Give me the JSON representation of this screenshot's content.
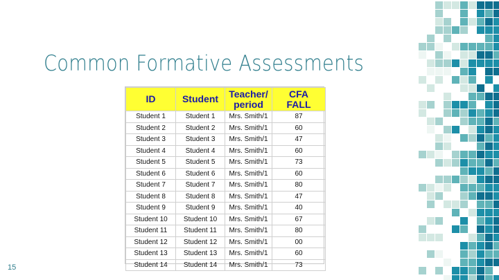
{
  "slide": {
    "title": "Common Formative Assessments",
    "number": "15"
  },
  "table": {
    "headers": [
      "ID",
      "Student",
      "Teacher/\nperiod",
      "CFA\nFALL"
    ],
    "rows": [
      [
        "Student 1",
        "Student 1",
        "Mrs. Smith/1",
        "87"
      ],
      [
        "Student 2",
        "Student 2",
        "Mrs. Smith/1",
        "60"
      ],
      [
        "Student 3",
        "Student 3",
        "Mrs. Smith/1",
        "47"
      ],
      [
        "Student 4",
        "Student 4",
        "Mrs. Smith/1",
        "60"
      ],
      [
        "Student 5",
        "Student 5",
        "Mrs. Smith/1",
        "73"
      ],
      [
        "Student 6",
        "Student 6",
        "Mrs. Smith/1",
        "60"
      ],
      [
        "Student 7",
        "Student 7",
        "Mrs. Smith/1",
        "80"
      ],
      [
        "Student 8",
        "Student 8",
        "Mrs. Smith/1",
        "47"
      ],
      [
        "Student 9",
        "Student 9",
        "Mrs. Smith/1",
        "40"
      ],
      [
        "Student 10",
        "Student 10",
        "Mrs. Smith/1",
        "67"
      ],
      [
        "Student 11",
        "Student 11",
        "Mrs. Smith/1",
        "80"
      ],
      [
        "Student 12",
        "Student 12",
        "Mrs. Smith/1",
        "00"
      ],
      [
        "Student 13",
        "Student 13",
        "Mrs. Smith/1",
        "60"
      ],
      [
        "Student 14",
        "Student 14",
        "Mrs. Smith/1",
        "73"
      ]
    ]
  },
  "colors": {
    "accent": "#2e7d8c",
    "header_bg": "#ffff33",
    "header_text": "#1a1aa6",
    "mosaic": [
      "#0f6f8f",
      "#1d8fa8",
      "#5fb3b8",
      "#a6d2cf",
      "#d3e8e2",
      "#eef6f3"
    ]
  }
}
